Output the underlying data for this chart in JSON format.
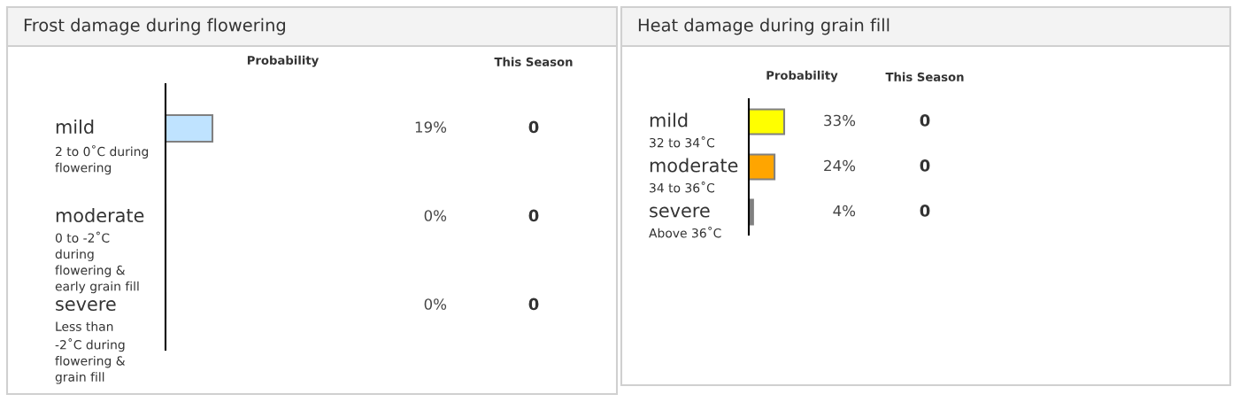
{
  "chart_data": [
    {
      "type": "bar",
      "orientation": "horizontal",
      "title": "Frost damage during flowering",
      "xlabel": "Probability",
      "categories": [
        "mild\n2 to 0˚C during\nflowering",
        "moderate\n0 to -2˚C\nduring\nflowering &\nearly grain fill",
        "severe\nLess than\n-2˚C during\nflowering &\ngrain fill"
      ],
      "values": [
        19,
        0,
        0
      ],
      "colors": [
        "#bfe3ff",
        "#bfe3ff",
        "#bfe3ff"
      ],
      "value_labels": [
        "19%",
        "0%",
        "0%"
      ],
      "annotations": [
        "This Season",
        "0",
        "0",
        "0"
      ]
    },
    {
      "type": "bar",
      "orientation": "horizontal",
      "title": "Heat damage during grain fill",
      "xlabel": "Probability",
      "categories": [
        "mild\n32 to 34˚C",
        "moderate\n34 to 36˚C",
        "severe\nAbove 36˚C"
      ],
      "values": [
        33,
        24,
        4
      ],
      "colors": [
        "#ffff00",
        "#ffa500",
        "#808080"
      ],
      "value_labels": [
        "33%",
        "24%",
        "4%"
      ],
      "annotations": [
        "This Season",
        "0",
        "0",
        "0"
      ]
    }
  ]
}
